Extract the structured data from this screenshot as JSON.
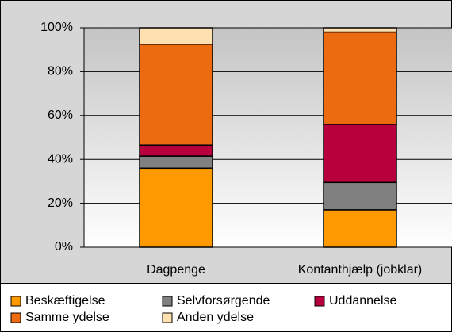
{
  "chart_data": {
    "type": "stacked_bar",
    "categories": [
      "Dagpenge",
      "Kontanthjælp (jobklar)"
    ],
    "series": [
      {
        "name": "Beskæftigelse",
        "color": "#ff9900",
        "values": [
          36,
          17
        ]
      },
      {
        "name": "Selvforsørgende",
        "color": "#808080",
        "values": [
          5.5,
          12.5
        ]
      },
      {
        "name": "Uddannelse",
        "color": "#b8003c",
        "values": [
          5,
          26.5
        ]
      },
      {
        "name": "Samme ydelse",
        "color": "#ec6a10",
        "values": [
          46,
          42
        ]
      },
      {
        "name": "Anden ydelse",
        "color": "#ffe0b0",
        "values": [
          7.5,
          2
        ]
      }
    ],
    "ylim": [
      0,
      100
    ],
    "yticks": [
      {
        "value": 0,
        "label": "0%"
      },
      {
        "value": 20,
        "label": "20%"
      },
      {
        "value": 40,
        "label": "40%"
      },
      {
        "value": 60,
        "label": "60%"
      },
      {
        "value": 80,
        "label": "80%"
      },
      {
        "value": 100,
        "label": "100%"
      }
    ],
    "grid": true,
    "legend": "bottom"
  }
}
